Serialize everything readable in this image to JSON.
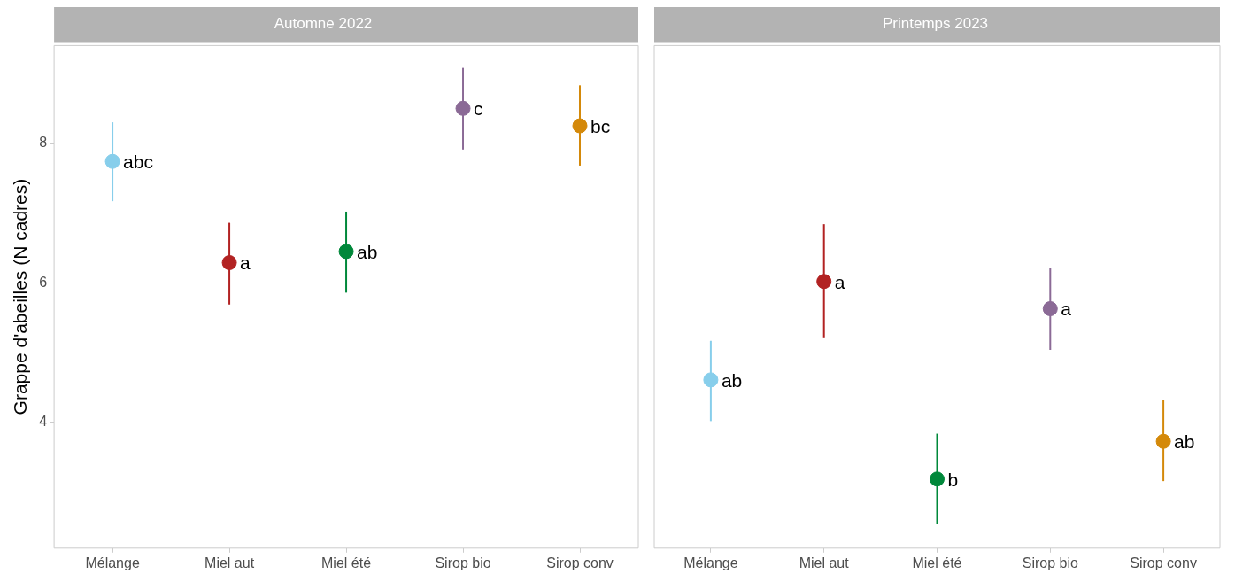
{
  "chart_data": [
    {
      "type": "scatter",
      "title": "Automne 2022",
      "ylabel": "Grappe d'abeilles (N cadres)",
      "categories": [
        "Mélange",
        "Miel aut",
        "Miel été",
        "Sirop bio",
        "Sirop conv"
      ],
      "values": [
        7.74,
        6.29,
        6.45,
        8.5,
        8.25
      ],
      "errors": [
        [
          7.17,
          8.3
        ],
        [
          5.69,
          6.86
        ],
        [
          5.86,
          7.02
        ],
        [
          7.91,
          9.08
        ],
        [
          7.68,
          8.83
        ]
      ],
      "colors": [
        "#87ceeb",
        "#b22222",
        "#00883a",
        "#8b6a96",
        "#d4890a"
      ],
      "value_labels": [
        "abc",
        "a",
        "ab",
        "c",
        "bc"
      ],
      "ylim": [
        2.2,
        9.4
      ],
      "yticks": [
        4,
        6,
        8
      ],
      "grid": false,
      "legend": false,
      "marker": "circle"
    },
    {
      "type": "scatter",
      "title": "Printemps 2023",
      "categories": [
        "Mélange",
        "Miel aut",
        "Miel été",
        "Sirop bio",
        "Sirop conv"
      ],
      "values": [
        4.61,
        6.02,
        3.19,
        5.63,
        3.73
      ],
      "errors": [
        [
          4.02,
          5.17
        ],
        [
          5.22,
          6.84
        ],
        [
          2.55,
          3.84
        ],
        [
          5.04,
          6.21
        ],
        [
          3.16,
          4.32
        ]
      ],
      "colors": [
        "#87ceeb",
        "#b22222",
        "#00883a",
        "#8b6a96",
        "#d4890a"
      ],
      "value_labels": [
        "ab",
        "a",
        "b",
        "a",
        "ab"
      ],
      "ylim": [
        2.2,
        9.4
      ],
      "yticks": [
        4,
        6,
        8
      ],
      "grid": false,
      "legend": false,
      "marker": "circle",
      "tick_labels": "x"
    }
  ]
}
